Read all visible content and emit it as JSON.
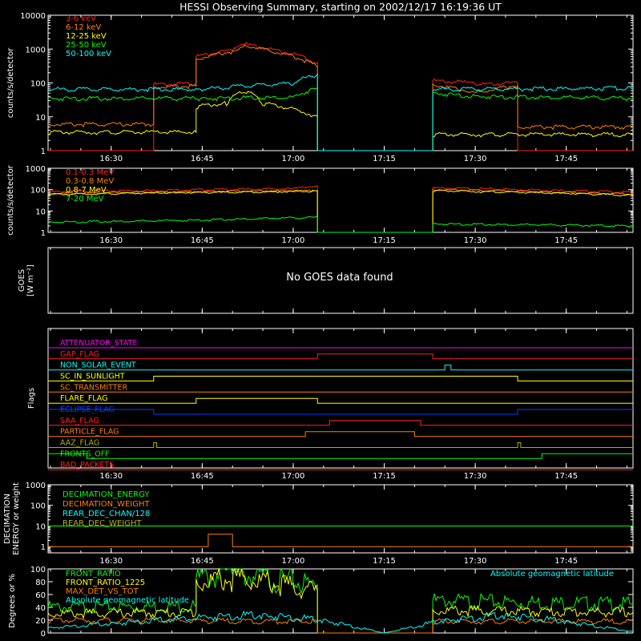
{
  "title": "HESSI Observing Summary, starting on 2002/12/17 16:19:36 UT",
  "time_ticks": [
    "16:30",
    "16:45",
    "17:00",
    "17:15",
    "17:30",
    "17:45"
  ],
  "no_goes_text": "No GOES data found",
  "colors": {
    "axis": "#ffffff",
    "red": "#ff2020",
    "orange": "#ff8000",
    "yellow": "#ffff00",
    "green": "#00ff00",
    "cyan": "#00ffff",
    "magenta": "#ff00ff",
    "blue": "#0040ff",
    "olive": "#b0b000"
  },
  "chart_data": [
    {
      "type": "line",
      "name": "low-energy",
      "ylabel": "counts/s/detector",
      "yscale": "log",
      "ylim": [
        1,
        10000
      ],
      "yticks": [
        "1",
        "10",
        "100",
        "1000",
        "10000"
      ],
      "xlim": [
        "16:19:36",
        "17:56:00"
      ],
      "series": [
        {
          "name": "3-6 keV",
          "color": "#ff2020",
          "points": [
            [
              "16:19:36",
              1
            ],
            [
              "16:37",
              1
            ],
            [
              "16:37",
              90
            ],
            [
              "16:44",
              95
            ],
            [
              "16:44",
              600
            ],
            [
              "16:50",
              900
            ],
            [
              "16:52",
              1400
            ],
            [
              "16:56",
              1000
            ],
            [
              "17:04",
              400
            ],
            [
              "17:04",
              1
            ],
            [
              "17:23",
              1
            ],
            [
              "17:23",
              115
            ],
            [
              "17:28",
              105
            ],
            [
              "17:31",
              90
            ],
            [
              "17:37",
              100
            ],
            [
              "17:37",
              1
            ],
            [
              "17:56",
              1
            ]
          ]
        },
        {
          "name": "6-12 keV",
          "color": "#ff8000",
          "points": [
            [
              "16:19:36",
              6
            ],
            [
              "16:37",
              6
            ],
            [
              "16:37",
              75
            ],
            [
              "16:44",
              80
            ],
            [
              "16:44",
              500
            ],
            [
              "16:50",
              850
            ],
            [
              "16:52",
              1300
            ],
            [
              "16:56",
              900
            ],
            [
              "17:04",
              300
            ],
            [
              "17:04",
              1
            ],
            [
              "17:23",
              1
            ],
            [
              "17:23",
              90
            ],
            [
              "17:28",
              60
            ],
            [
              "17:31",
              55
            ],
            [
              "17:37",
              85
            ],
            [
              "17:37",
              5
            ],
            [
              "17:56",
              5
            ]
          ]
        },
        {
          "name": "12-25 keV",
          "color": "#ffff00",
          "points": [
            [
              "16:19:36",
              3.5
            ],
            [
              "16:44",
              3.5
            ],
            [
              "16:44",
              20
            ],
            [
              "16:49",
              25
            ],
            [
              "16:52",
              60
            ],
            [
              "16:55",
              25
            ],
            [
              "17:04",
              10
            ],
            [
              "17:04",
              1
            ],
            [
              "17:23",
              1
            ],
            [
              "17:23",
              3
            ],
            [
              "17:56",
              3
            ]
          ]
        },
        {
          "name": "25-50 keV",
          "color": "#00ff00",
          "points": [
            [
              "16:19:36",
              35
            ],
            [
              "16:45",
              35
            ],
            [
              "17:00",
              38
            ],
            [
              "17:04",
              70
            ],
            [
              "17:04",
              1
            ],
            [
              "17:23",
              1
            ],
            [
              "17:23",
              50
            ],
            [
              "17:30",
              40
            ],
            [
              "17:56",
              35
            ]
          ]
        },
        {
          "name": "50-100 keV",
          "color": "#00ffff",
          "points": [
            [
              "16:19:36",
              65
            ],
            [
              "16:45",
              65
            ],
            [
              "17:00",
              100
            ],
            [
              "17:04",
              180
            ],
            [
              "17:04",
              1
            ],
            [
              "17:23",
              1
            ],
            [
              "17:23",
              65
            ],
            [
              "17:56",
              70
            ]
          ]
        }
      ]
    },
    {
      "type": "line",
      "name": "high-energy",
      "ylabel": "counts/s/detector",
      "yscale": "log",
      "ylim": [
        1,
        1000
      ],
      "yticks": [
        "1",
        "10",
        "100",
        "1000"
      ],
      "series": [
        {
          "name": "0.1-0.3 MeV",
          "color": "#ff2020",
          "points": [
            [
              "16:19:36",
              80
            ],
            [
              "17:00",
              110
            ],
            [
              "17:04",
              150
            ],
            [
              "17:04",
              1
            ],
            [
              "17:23",
              1
            ],
            [
              "17:23",
              120
            ],
            [
              "17:56",
              75
            ]
          ]
        },
        {
          "name": "0.3-0.8 MeV",
          "color": "#ff8000",
          "points": [
            [
              "16:19:36",
              65
            ],
            [
              "17:04",
              90
            ],
            [
              "17:04",
              1
            ],
            [
              "17:23",
              1
            ],
            [
              "17:23",
              100
            ],
            [
              "17:56",
              60
            ]
          ]
        },
        {
          "name": "0.8-7 MeV",
          "color": "#ffff00",
          "points": [
            [
              "16:19:36",
              60
            ],
            [
              "17:04",
              85
            ],
            [
              "17:04",
              1
            ],
            [
              "17:23",
              1
            ],
            [
              "17:23",
              90
            ],
            [
              "17:56",
              55
            ]
          ]
        },
        {
          "name": "7-20 MeV",
          "color": "#00ff00",
          "points": [
            [
              "16:19:36",
              3
            ],
            [
              "16:40",
              3.5
            ],
            [
              "17:04",
              5
            ],
            [
              "17:04",
              1
            ],
            [
              "17:23",
              1
            ],
            [
              "17:23",
              2.5
            ],
            [
              "17:56",
              2
            ]
          ]
        }
      ]
    },
    {
      "type": "line",
      "name": "goes",
      "ylabel_1": "GOES",
      "ylabel_2": "[W m⁻²]",
      "series": []
    },
    {
      "type": "line",
      "name": "flags",
      "ylabel": "Flags",
      "series": [
        {
          "name": "ATTENUATOR_STATE",
          "color": "#ff00ff",
          "points": [
            [
              "16:19:36",
              0
            ],
            [
              "17:56",
              0
            ]
          ]
        },
        {
          "name": "GAP_FLAG",
          "color": "#ff2020",
          "points": [
            [
              "16:19:36",
              0
            ],
            [
              "17:04",
              0
            ],
            [
              "17:04",
              1
            ],
            [
              "17:23",
              1
            ],
            [
              "17:23",
              0
            ],
            [
              "17:56",
              0
            ]
          ]
        },
        {
          "name": "NON_SOLAR_EVENT",
          "color": "#00ffff",
          "points": [
            [
              "16:19:36",
              0
            ],
            [
              "17:25",
              0
            ],
            [
              "17:25",
              1
            ],
            [
              "17:26",
              1
            ],
            [
              "17:26",
              0
            ],
            [
              "17:56",
              0
            ]
          ]
        },
        {
          "name": "SC_IN_SUNLIGHT",
          "color": "#ffff00",
          "points": [
            [
              "16:19:36",
              0
            ],
            [
              "16:37",
              0
            ],
            [
              "16:37",
              1
            ],
            [
              "17:37",
              1
            ],
            [
              "17:37",
              0
            ],
            [
              "17:56",
              0
            ]
          ]
        },
        {
          "name": "SC_TRANSMITTER",
          "color": "#ff8000",
          "points": [
            [
              "16:19:36",
              0
            ],
            [
              "17:56",
              0
            ]
          ]
        },
        {
          "name": "FLARE_FLAG",
          "color": "#ffff00",
          "points": [
            [
              "16:19:36",
              0
            ],
            [
              "16:44",
              0
            ],
            [
              "16:44",
              1
            ],
            [
              "17:04",
              1
            ],
            [
              "17:04",
              0
            ],
            [
              "17:56",
              0
            ]
          ]
        },
        {
          "name": "ECLIPSE_FLAG",
          "color": "#0040ff",
          "points": [
            [
              "16:19:36",
              1
            ],
            [
              "16:37",
              1
            ],
            [
              "16:37",
              0
            ],
            [
              "17:37",
              0
            ],
            [
              "17:37",
              1
            ],
            [
              "17:56",
              1
            ]
          ]
        },
        {
          "name": "SAA_FLAG",
          "color": "#ff2020",
          "points": [
            [
              "16:19:36",
              0
            ],
            [
              "17:06",
              0
            ],
            [
              "17:06",
              1
            ],
            [
              "17:21",
              1
            ],
            [
              "17:21",
              0
            ],
            [
              "17:56",
              0
            ]
          ]
        },
        {
          "name": "PARTICLE_FLAG",
          "color": "#ff8000",
          "points": [
            [
              "16:19:36",
              0
            ],
            [
              "17:02",
              0
            ],
            [
              "17:02",
              1
            ],
            [
              "17:20",
              1
            ],
            [
              "17:20",
              0
            ],
            [
              "17:56",
              0
            ]
          ]
        },
        {
          "name": "AAZ_FLAG",
          "color": "#b0b000",
          "points": [
            [
              "16:19:36",
              0
            ],
            [
              "16:37",
              0
            ],
            [
              "16:37",
              1
            ],
            [
              "16:37:30",
              1
            ],
            [
              "16:37:30",
              0
            ],
            [
              "17:37",
              0
            ],
            [
              "17:37",
              1
            ],
            [
              "17:37:30",
              1
            ],
            [
              "17:37:30",
              0
            ],
            [
              "17:56",
              0
            ]
          ]
        },
        {
          "name": "FRONTS_OFF",
          "color": "#00ff00",
          "points": [
            [
              "16:19:36",
              1
            ],
            [
              "16:26",
              1
            ],
            [
              "16:26",
              0
            ],
            [
              "17:41",
              0
            ],
            [
              "17:41",
              1
            ],
            [
              "17:56",
              1
            ]
          ]
        },
        {
          "name": "BAD_PACKETS",
          "color": "#ff2020",
          "points": [
            [
              "16:19:36",
              0
            ],
            [
              "17:56",
              0
            ]
          ]
        }
      ]
    },
    {
      "type": "line",
      "name": "decimation",
      "ylabel_1": "DECIMATION",
      "ylabel_2": "ENERGY or weight",
      "yscale": "log",
      "ylim": [
        0.5,
        1000
      ],
      "yticks": [
        "1",
        "10",
        "100",
        "1000"
      ],
      "series": [
        {
          "name": "DECIMATION_ENERGY",
          "color": "#00ff00",
          "points": [
            [
              "16:19:36",
              10
            ],
            [
              "17:56",
              10
            ]
          ]
        },
        {
          "name": "DECIMATION_WEIGHT",
          "color": "#ff8000",
          "points": [
            [
              "16:19:36",
              1
            ],
            [
              "16:46",
              1
            ],
            [
              "16:46",
              4
            ],
            [
              "16:50",
              4
            ],
            [
              "16:50",
              1
            ],
            [
              "17:56",
              1
            ]
          ]
        },
        {
          "name": "REAR_DEC_CHAN/128",
          "color": "#00ffff",
          "points": []
        },
        {
          "name": "REAR_DEC_WEIGHT",
          "color": "#b0b000",
          "points": []
        }
      ]
    },
    {
      "type": "line",
      "name": "ratios",
      "ylabel": "Degrees or %",
      "ylim": [
        0,
        100
      ],
      "yticks": [
        "0",
        "20",
        "40",
        "60",
        "80",
        "100"
      ],
      "annotation": "Absolute geomagnetic latitude",
      "series": [
        {
          "name": "FRONT_RATIO",
          "color": "#00ff00",
          "points": [
            [
              "16:19:36",
              40
            ],
            [
              "16:44",
              42
            ],
            [
              "16:44",
              85
            ],
            [
              "16:50",
              92
            ],
            [
              "17:04",
              75
            ],
            [
              "17:04",
              0
            ],
            [
              "17:23",
              0
            ],
            [
              "17:23",
              50
            ],
            [
              "17:56",
              45
            ]
          ]
        },
        {
          "name": "FRONT_RATIO_1225",
          "color": "#ffff00",
          "points": [
            [
              "16:19:36",
              30
            ],
            [
              "16:44",
              32
            ],
            [
              "16:44",
              80
            ],
            [
              "16:52",
              85
            ],
            [
              "17:04",
              65
            ],
            [
              "17:04",
              0
            ],
            [
              "17:23",
              0
            ],
            [
              "17:23",
              35
            ],
            [
              "17:56",
              32
            ]
          ]
        },
        {
          "name": "MAX_DET_VS_TOT",
          "color": "#ff8000",
          "points": [
            [
              "16:19:36",
              20
            ],
            [
              "17:04",
              18
            ],
            [
              "17:04",
              0
            ],
            [
              "17:23",
              0
            ],
            [
              "17:23",
              18
            ],
            [
              "17:56",
              18
            ]
          ]
        },
        {
          "name": "Absolute geomagnetic latitude",
          "color": "#00ffff",
          "points": [
            [
              "16:19:36",
              8
            ],
            [
              "16:30",
              15
            ],
            [
              "16:45",
              25
            ],
            [
              "16:55",
              28
            ],
            [
              "17:05",
              20
            ],
            [
              "17:15",
              0
            ],
            [
              "17:25",
              20
            ],
            [
              "17:35",
              28
            ],
            [
              "17:45",
              18
            ],
            [
              "17:56",
              2
            ]
          ]
        }
      ]
    }
  ]
}
